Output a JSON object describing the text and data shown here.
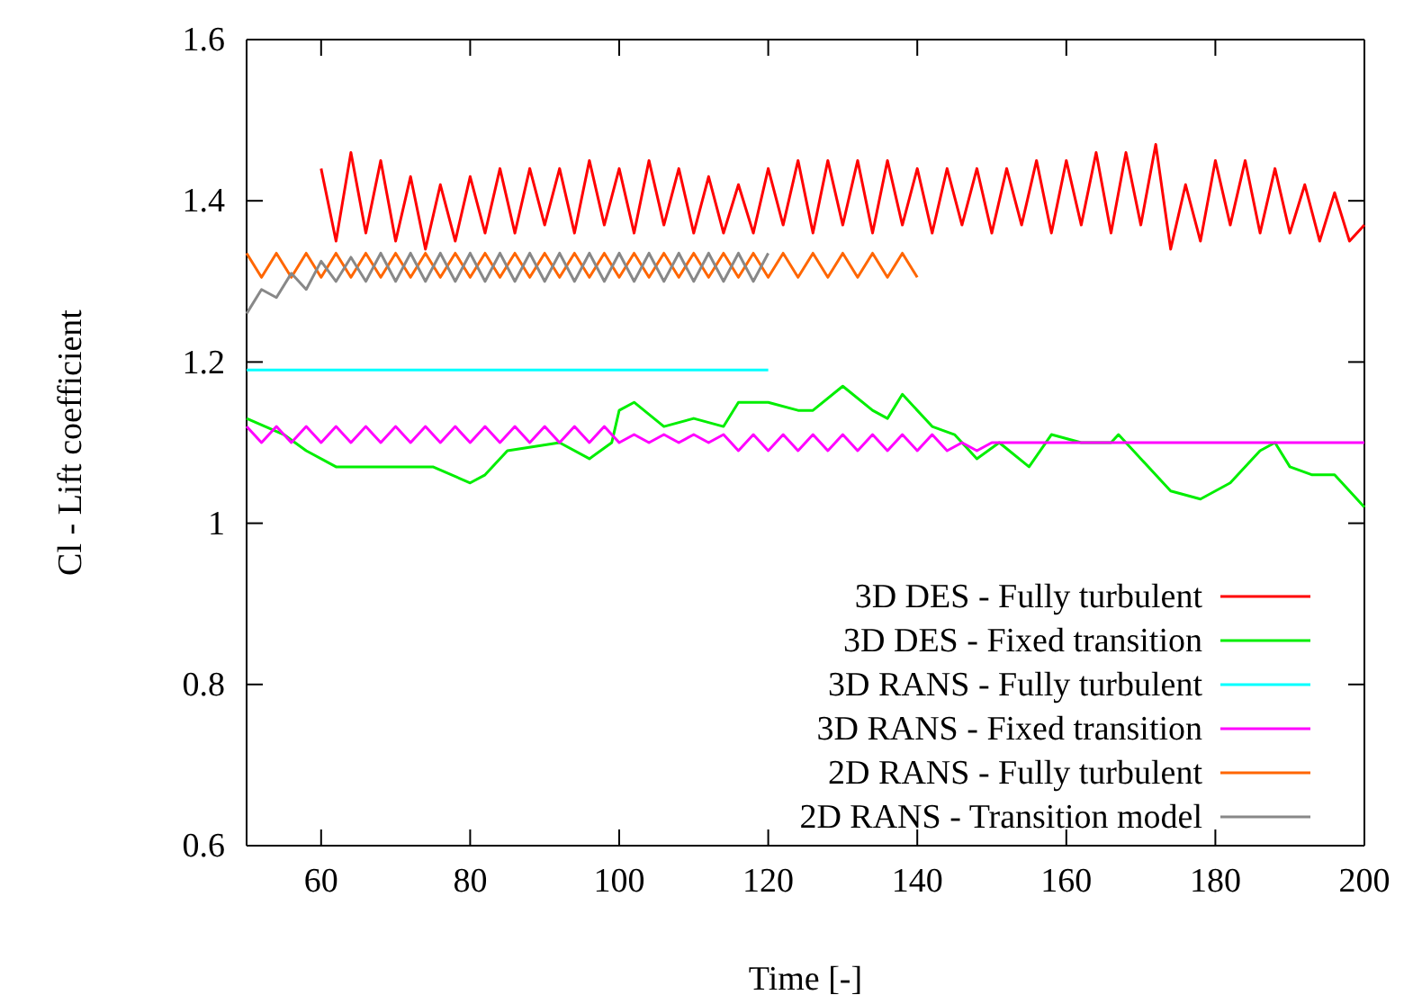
{
  "chart_data": {
    "type": "line",
    "xlabel": "Time [-]",
    "ylabel": "Cl - Lift coefficient",
    "xlim": [
      50,
      200
    ],
    "ylim": [
      0.6,
      1.6
    ],
    "xticks": [
      60,
      80,
      100,
      120,
      140,
      160,
      180,
      200
    ],
    "yticks": [
      0.6,
      0.8,
      1,
      1.2,
      1.4,
      1.6
    ],
    "legend": "bottom right",
    "series": [
      {
        "name": "3D DES - Fully turbulent",
        "color": "#ff0000",
        "x": [
          60,
          62,
          64,
          66,
          68,
          70,
          72,
          74,
          76,
          78,
          80,
          82,
          84,
          86,
          88,
          90,
          92,
          94,
          96,
          98,
          100,
          102,
          104,
          106,
          108,
          110,
          112,
          114,
          116,
          118,
          120,
          122,
          124,
          126,
          128,
          130,
          132,
          134,
          136,
          138,
          140,
          142,
          144,
          146,
          148,
          150,
          152,
          154,
          156,
          158,
          160,
          162,
          164,
          166,
          168,
          170,
          172,
          174,
          176,
          178,
          180,
          182,
          184,
          186,
          188,
          190,
          192,
          194,
          196,
          198,
          200
        ],
        "values": [
          1.44,
          1.35,
          1.46,
          1.36,
          1.45,
          1.35,
          1.43,
          1.34,
          1.42,
          1.35,
          1.43,
          1.36,
          1.44,
          1.36,
          1.44,
          1.37,
          1.44,
          1.36,
          1.45,
          1.37,
          1.44,
          1.36,
          1.45,
          1.37,
          1.44,
          1.36,
          1.43,
          1.36,
          1.42,
          1.36,
          1.44,
          1.37,
          1.45,
          1.36,
          1.45,
          1.37,
          1.45,
          1.36,
          1.45,
          1.37,
          1.44,
          1.36,
          1.44,
          1.37,
          1.44,
          1.36,
          1.44,
          1.37,
          1.45,
          1.36,
          1.45,
          1.37,
          1.46,
          1.36,
          1.46,
          1.37,
          1.47,
          1.34,
          1.42,
          1.35,
          1.45,
          1.37,
          1.45,
          1.36,
          1.44,
          1.36,
          1.42,
          1.35,
          1.41,
          1.35,
          1.37
        ]
      },
      {
        "name": "3D DES - Fixed transition",
        "color": "#00ee00",
        "x": [
          50,
          55,
          58,
          62,
          70,
          75,
          80,
          82,
          85,
          92,
          96,
          99,
          100,
          102,
          106,
          110,
          114,
          116,
          120,
          124,
          126,
          130,
          134,
          136,
          138,
          142,
          145,
          148,
          151,
          155,
          158,
          162,
          166,
          167,
          170,
          174,
          178,
          182,
          186,
          188,
          190,
          193,
          196,
          200
        ],
        "values": [
          1.13,
          1.11,
          1.09,
          1.07,
          1.07,
          1.07,
          1.05,
          1.06,
          1.09,
          1.1,
          1.08,
          1.1,
          1.14,
          1.15,
          1.12,
          1.13,
          1.12,
          1.15,
          1.15,
          1.14,
          1.14,
          1.17,
          1.14,
          1.13,
          1.16,
          1.12,
          1.11,
          1.08,
          1.1,
          1.07,
          1.11,
          1.1,
          1.1,
          1.11,
          1.08,
          1.04,
          1.03,
          1.05,
          1.09,
          1.1,
          1.07,
          1.06,
          1.06,
          1.02
        ]
      },
      {
        "name": "3D RANS - Fully turbulent",
        "color": "#00ffff",
        "x": [
          50,
          120
        ],
        "values": [
          1.19,
          1.19
        ]
      },
      {
        "name": "3D RANS - Fixed transition",
        "color": "#ff00ff",
        "x": [
          50,
          52,
          54,
          56,
          58,
          60,
          62,
          64,
          66,
          68,
          70,
          72,
          74,
          76,
          78,
          80,
          82,
          84,
          86,
          88,
          90,
          92,
          94,
          96,
          98,
          100,
          102,
          104,
          106,
          108,
          110,
          112,
          114,
          116,
          118,
          120,
          122,
          124,
          126,
          128,
          130,
          132,
          134,
          136,
          138,
          140,
          142,
          144,
          146,
          148,
          150,
          160,
          180,
          200
        ],
        "values": [
          1.12,
          1.1,
          1.12,
          1.1,
          1.12,
          1.1,
          1.12,
          1.1,
          1.12,
          1.1,
          1.12,
          1.1,
          1.12,
          1.1,
          1.12,
          1.1,
          1.12,
          1.1,
          1.12,
          1.1,
          1.12,
          1.1,
          1.12,
          1.1,
          1.12,
          1.1,
          1.11,
          1.1,
          1.11,
          1.1,
          1.11,
          1.1,
          1.11,
          1.09,
          1.11,
          1.09,
          1.11,
          1.09,
          1.11,
          1.09,
          1.11,
          1.09,
          1.11,
          1.09,
          1.11,
          1.09,
          1.11,
          1.09,
          1.1,
          1.09,
          1.1,
          1.1,
          1.1,
          1.1
        ]
      },
      {
        "name": "2D RANS - Fully turbulent",
        "color": "#ff6600",
        "x": [
          50,
          52,
          54,
          56,
          58,
          60,
          62,
          64,
          66,
          68,
          70,
          72,
          74,
          76,
          78,
          80,
          82,
          84,
          86,
          88,
          90,
          92,
          94,
          96,
          98,
          100,
          102,
          104,
          106,
          108,
          110,
          112,
          114,
          116,
          118,
          120,
          122,
          124,
          126,
          128,
          130,
          132,
          134,
          136,
          138,
          140
        ],
        "values": [
          1.335,
          1.305,
          1.335,
          1.305,
          1.335,
          1.305,
          1.335,
          1.305,
          1.335,
          1.305,
          1.335,
          1.305,
          1.335,
          1.305,
          1.335,
          1.305,
          1.335,
          1.305,
          1.335,
          1.305,
          1.335,
          1.305,
          1.335,
          1.305,
          1.335,
          1.305,
          1.335,
          1.305,
          1.335,
          1.305,
          1.335,
          1.305,
          1.335,
          1.305,
          1.335,
          1.305,
          1.335,
          1.305,
          1.335,
          1.305,
          1.335,
          1.305,
          1.335,
          1.305,
          1.335,
          1.305
        ]
      },
      {
        "name": "2D RANS - Transition model",
        "color": "#888888",
        "x": [
          50,
          52,
          54,
          56,
          58,
          60,
          62,
          64,
          66,
          68,
          70,
          72,
          74,
          76,
          78,
          80,
          82,
          84,
          86,
          88,
          90,
          92,
          94,
          96,
          98,
          100,
          102,
          104,
          106,
          108,
          110,
          112,
          114,
          116,
          118,
          120
        ],
        "values": [
          1.26,
          1.29,
          1.28,
          1.31,
          1.29,
          1.325,
          1.3,
          1.33,
          1.3,
          1.335,
          1.3,
          1.335,
          1.3,
          1.335,
          1.3,
          1.335,
          1.3,
          1.335,
          1.3,
          1.335,
          1.3,
          1.335,
          1.3,
          1.335,
          1.3,
          1.335,
          1.3,
          1.335,
          1.3,
          1.335,
          1.3,
          1.335,
          1.3,
          1.335,
          1.3,
          1.335
        ]
      }
    ]
  }
}
